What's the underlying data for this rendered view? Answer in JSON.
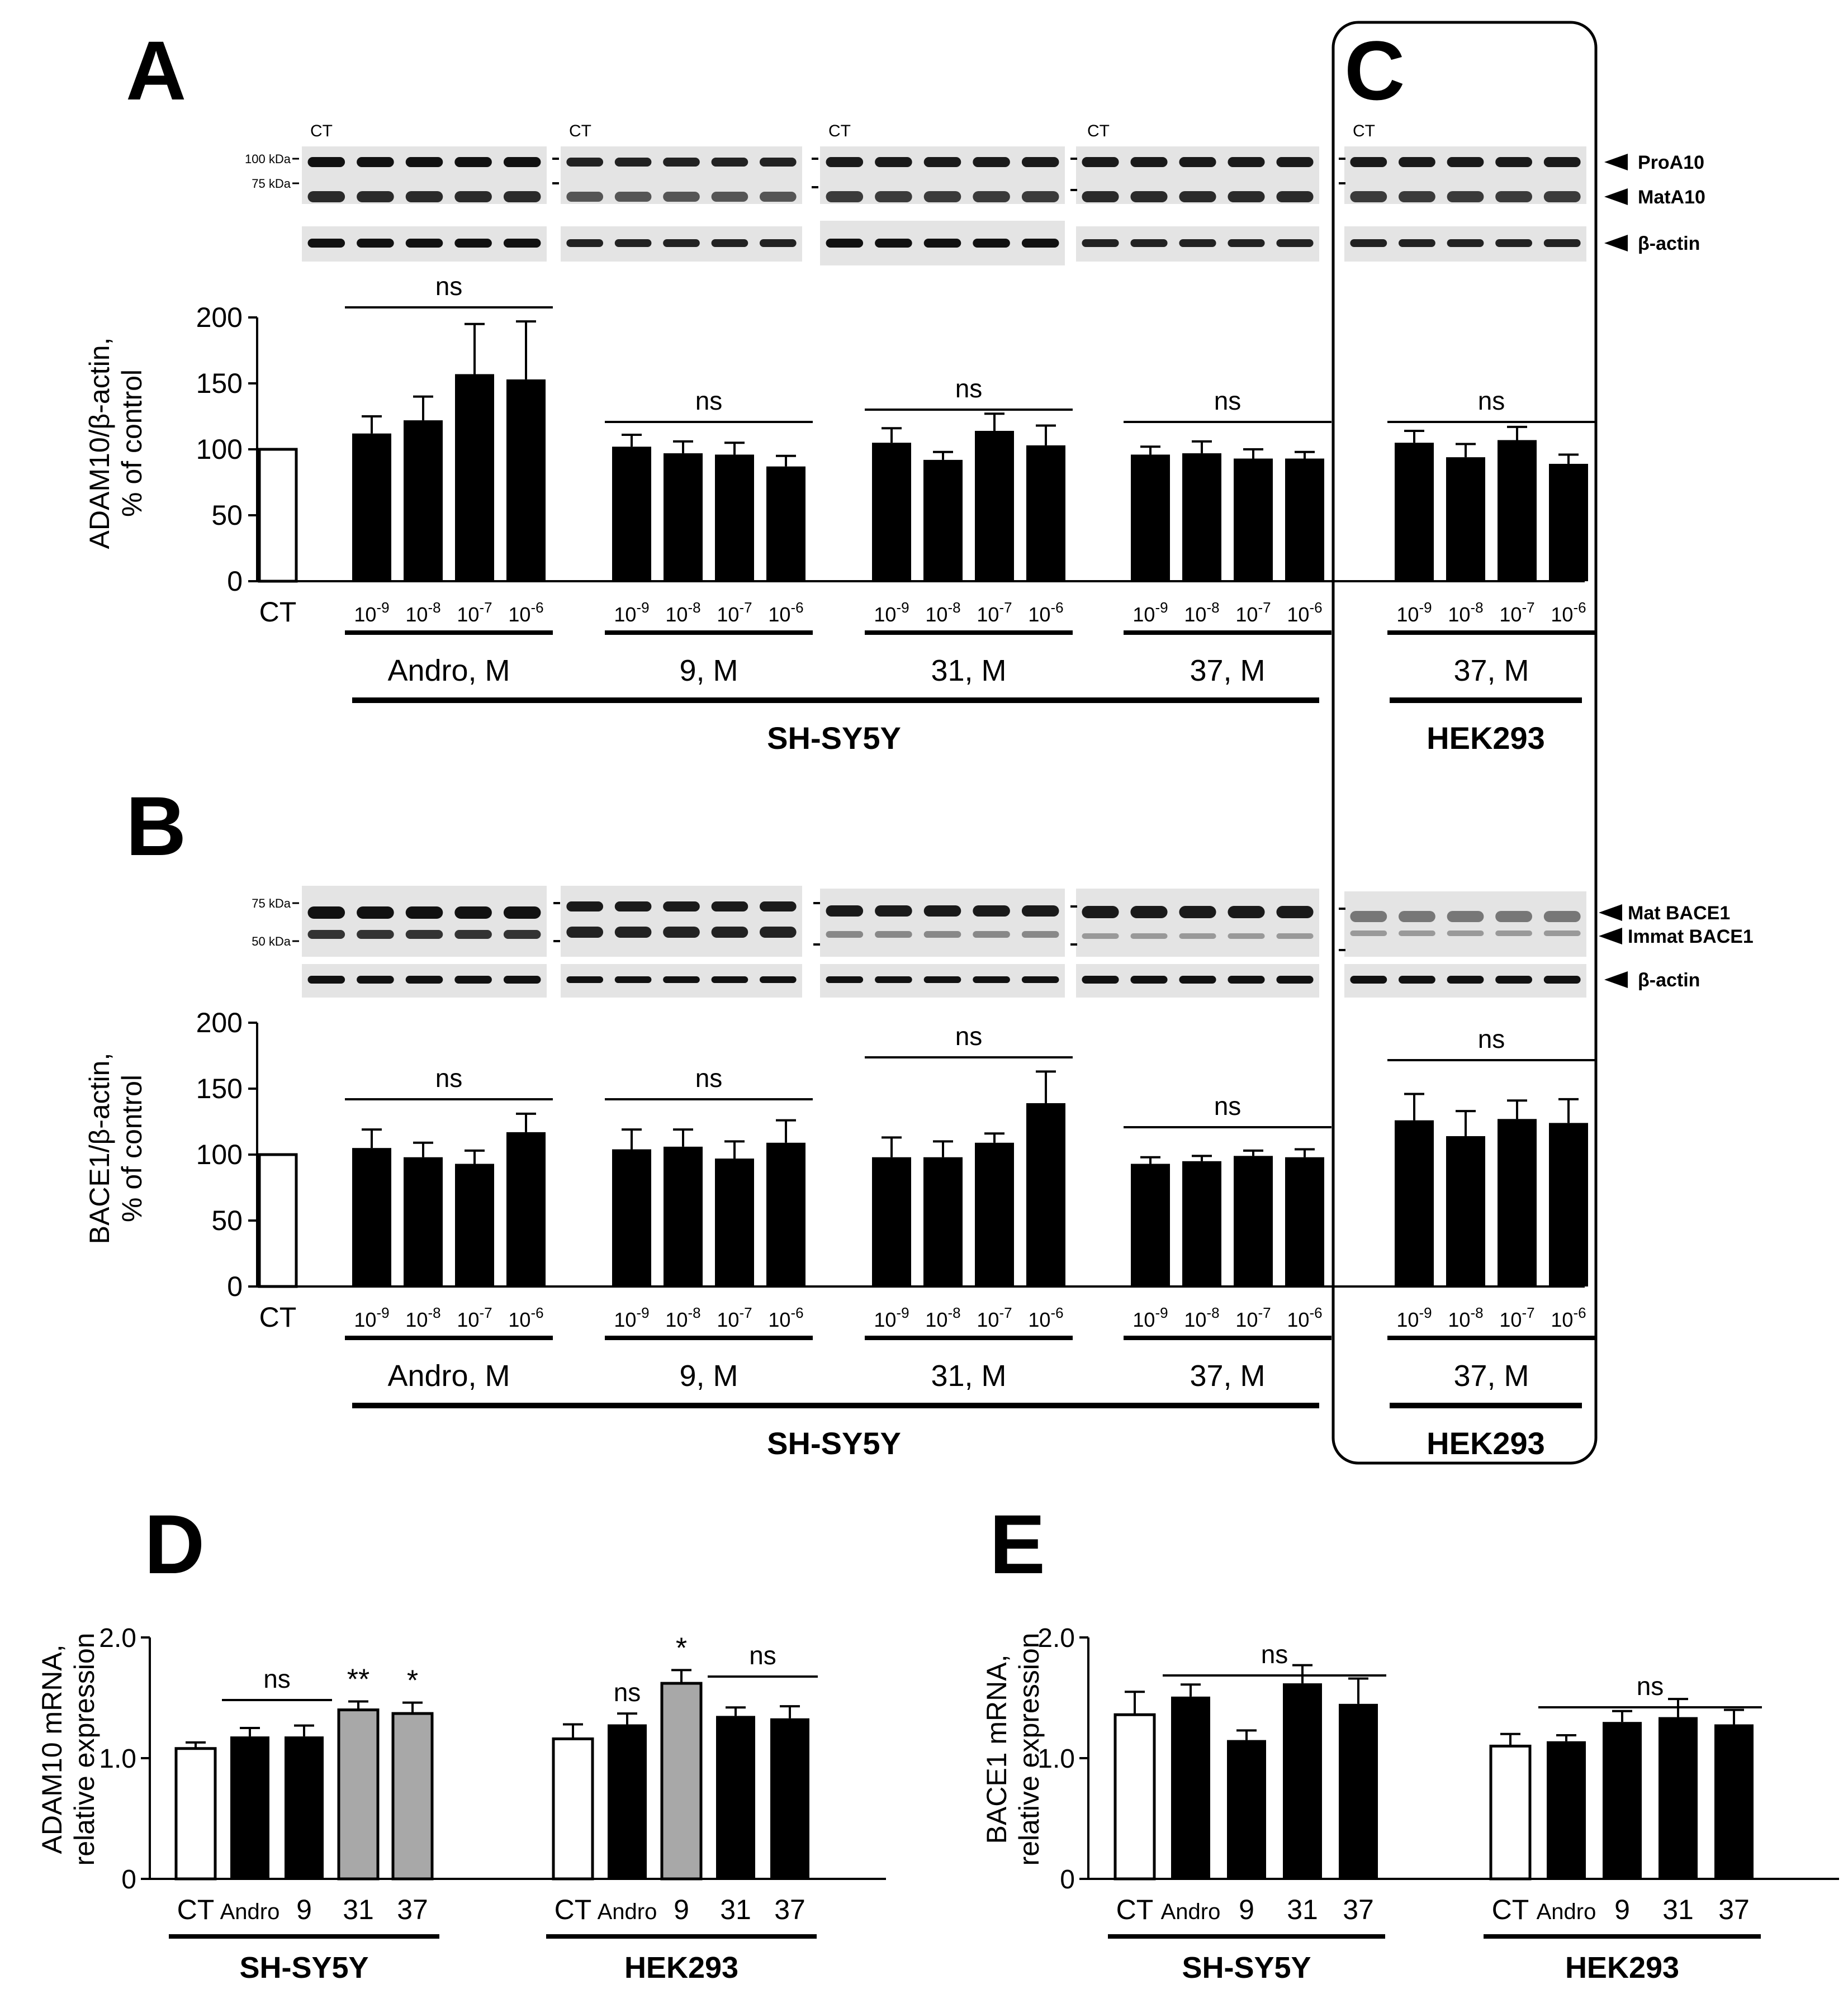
{
  "panel_letters": [
    "A",
    "B",
    "C",
    "D",
    "E"
  ],
  "blots": {
    "A": {
      "ct_label": "CT",
      "markers": [
        "100 kDa",
        "75 kDa"
      ],
      "bands": [
        "ProA10",
        "MatA10",
        "β-actin"
      ]
    },
    "B": {
      "markers": [
        "75 kDa",
        "50 kDa"
      ],
      "bands": [
        "Mat BACE1",
        "Immat BACE1",
        "β-actin"
      ]
    }
  },
  "chart_data": [
    {
      "id": "A",
      "type": "bar",
      "ylabel_line1": "ADAM10/β-actin,",
      "ylabel_line2": "% of control",
      "ylim": [
        0,
        200
      ],
      "yticks": [
        0,
        50,
        100,
        150,
        200
      ],
      "control": {
        "label": "CT",
        "value": 100
      },
      "dose_base": "10",
      "dose_exps": [
        "-9",
        "-8",
        "-7",
        "-6"
      ],
      "groups": [
        {
          "name": "Andro, M",
          "values": [
            112,
            122,
            157,
            153
          ],
          "errors": [
            13,
            18,
            38,
            44
          ],
          "sig": "ns"
        },
        {
          "name": "9, M",
          "values": [
            102,
            97,
            96,
            87
          ],
          "errors": [
            9,
            9,
            9,
            8
          ],
          "sig": "ns"
        },
        {
          "name": "31, M",
          "values": [
            105,
            92,
            114,
            103
          ],
          "errors": [
            11,
            6,
            13,
            15
          ],
          "sig": "ns"
        },
        {
          "name": "37, M",
          "values": [
            96,
            97,
            93,
            93
          ],
          "errors": [
            6,
            9,
            7,
            5
          ],
          "sig": "ns"
        },
        {
          "name": "37, M",
          "values": [
            105,
            94,
            107,
            89
          ],
          "errors": [
            9,
            10,
            10,
            7
          ],
          "sig": "ns"
        }
      ],
      "cell_lines": [
        "SH-SY5Y",
        "HEK293"
      ]
    },
    {
      "id": "B",
      "type": "bar",
      "ylabel_line1": "BACE1/β-actin,",
      "ylabel_line2": "% of control",
      "ylim": [
        0,
        200
      ],
      "yticks": [
        0,
        50,
        100,
        150,
        200
      ],
      "control": {
        "label": "CT",
        "value": 100
      },
      "dose_base": "10",
      "dose_exps": [
        "-9",
        "-8",
        "-7",
        "-6"
      ],
      "groups": [
        {
          "name": "Andro, M",
          "values": [
            105,
            98,
            93,
            117
          ],
          "errors": [
            14,
            11,
            10,
            14
          ],
          "sig": "ns"
        },
        {
          "name": "9, M",
          "values": [
            104,
            106,
            97,
            109
          ],
          "errors": [
            15,
            13,
            13,
            17
          ],
          "sig": "ns"
        },
        {
          "name": "31, M",
          "values": [
            98,
            98,
            109,
            139
          ],
          "errors": [
            15,
            12,
            7,
            24
          ],
          "sig": "ns"
        },
        {
          "name": "37, M",
          "values": [
            93,
            95,
            99,
            98
          ],
          "errors": [
            5,
            4,
            4,
            6
          ],
          "sig": "ns"
        },
        {
          "name": "37, M",
          "values": [
            126,
            114,
            127,
            124
          ],
          "errors": [
            20,
            19,
            14,
            18
          ],
          "sig": "ns"
        }
      ],
      "cell_lines": [
        "SH-SY5Y",
        "HEK293"
      ]
    },
    {
      "id": "D",
      "type": "bar",
      "ylabel_line1": "ADAM10 mRNA,",
      "ylabel_line2": "relative expression",
      "ylim": [
        0,
        2.0
      ],
      "yticks": [
        "0",
        "1.0",
        "2.0"
      ],
      "groups": [
        {
          "cell_line": "SH-SY5Y",
          "categories": [
            "CT",
            "Andro",
            "9",
            "31",
            "37"
          ],
          "values": [
            1.08,
            1.18,
            1.18,
            1.4,
            1.37
          ],
          "errors": [
            0.05,
            0.07,
            0.09,
            0.07,
            0.09
          ],
          "fills": [
            "white",
            "black",
            "black",
            "gray",
            "gray"
          ],
          "marks": [
            "",
            "",
            "",
            "**",
            "*"
          ]
        },
        {
          "cell_line": "HEK293",
          "categories": [
            "CT",
            "Andro",
            "9",
            "31",
            "37"
          ],
          "values": [
            1.16,
            1.28,
            1.62,
            1.35,
            1.33
          ],
          "errors": [
            0.12,
            0.09,
            0.11,
            0.07,
            0.1
          ],
          "fills": [
            "white",
            "black",
            "gray",
            "black",
            "black"
          ],
          "marks": [
            "",
            "ns",
            "*",
            "",
            ""
          ]
        }
      ],
      "brackets": [
        {
          "group": 0,
          "from": 1,
          "to": 2,
          "label": "ns"
        },
        {
          "group": 1,
          "from": 3,
          "to": 4,
          "label": "ns"
        }
      ]
    },
    {
      "id": "E",
      "type": "bar",
      "ylabel_line1": "BACE1 mRNA,",
      "ylabel_line2": "relative expression",
      "ylim": [
        0,
        2.0
      ],
      "yticks": [
        "0",
        "1.0",
        "2.0"
      ],
      "groups": [
        {
          "cell_line": "SH-SY5Y",
          "categories": [
            "CT",
            "Andro",
            "9",
            "31",
            "37"
          ],
          "values": [
            1.36,
            1.51,
            1.15,
            1.62,
            1.45
          ],
          "errors": [
            0.19,
            0.1,
            0.08,
            0.15,
            0.21
          ],
          "fills": [
            "white",
            "black",
            "black",
            "black",
            "black"
          ],
          "marks": [
            "",
            "",
            "",
            "",
            ""
          ]
        },
        {
          "cell_line": "HEK293",
          "categories": [
            "CT",
            "Andro",
            "9",
            "31",
            "37"
          ],
          "values": [
            1.1,
            1.14,
            1.3,
            1.34,
            1.28
          ],
          "errors": [
            0.1,
            0.05,
            0.09,
            0.15,
            0.12
          ],
          "fills": [
            "white",
            "black",
            "black",
            "black",
            "black"
          ],
          "marks": [
            "",
            "",
            "",
            "",
            ""
          ]
        }
      ],
      "brackets": [
        {
          "group": 0,
          "from": 1,
          "to": 4,
          "label": "ns"
        },
        {
          "group": 1,
          "from": 1,
          "to": 4,
          "label": "ns"
        }
      ]
    }
  ]
}
